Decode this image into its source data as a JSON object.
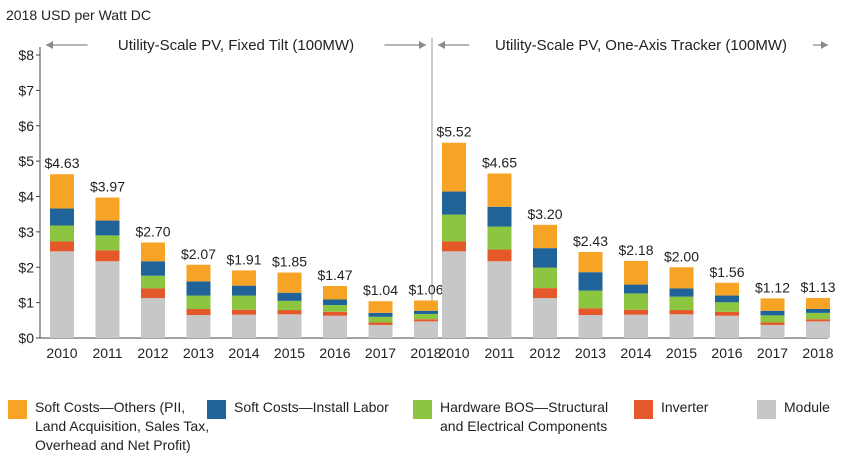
{
  "chart_data": {
    "type": "bar",
    "stacked": true,
    "ylabel": "2018 USD per Watt DC",
    "ylim": [
      0,
      8
    ],
    "yticks": [
      "$0",
      "$1",
      "$2",
      "$3",
      "$4",
      "$5",
      "$6",
      "$7",
      "$8"
    ],
    "grid": false,
    "legend_position": "bottom",
    "segment_order": [
      "Module",
      "Inverter",
      "Hardware BOS—Structural and Electrical Components",
      "Soft Costs—Install Labor",
      "Soft Costs—Others (PII, Land Acquisition, Sales Tax, Overhead and Net Profit)"
    ],
    "colors": {
      "Module": "#c7c7c7",
      "Inverter": "#e5582a",
      "Hardware BOS—Structural and Electrical Components": "#8cc540",
      "Soft Costs—Install Labor": "#1f6399",
      "Soft Costs—Others (PII, Land Acquisition, Sales Tax, Overhead and Net Profit)": "#f7a326"
    },
    "legend": [
      {
        "lines": [
          "Soft Costs—Others (PII,",
          "Land Acquisition, Sales Tax,",
          "Overhead and Net Profit)"
        ],
        "color": "#f7a326"
      },
      {
        "lines": [
          "Soft Costs—Install Labor"
        ],
        "color": "#1f6399"
      },
      {
        "lines": [
          "Hardware BOS—Structural",
          "and Electrical Components"
        ],
        "color": "#8cc540"
      },
      {
        "lines": [
          "Inverter"
        ],
        "color": "#e5582a"
      },
      {
        "lines": [
          "Module"
        ],
        "color": "#c7c7c7"
      }
    ],
    "panels": [
      {
        "title": "Utility-Scale PV, Fixed Tilt (100MW)",
        "categories": [
          "2010",
          "2011",
          "2012",
          "2013",
          "2014",
          "2015",
          "2016",
          "2017",
          "2018"
        ],
        "totals": [
          "$4.63",
          "$3.97",
          "$2.70",
          "$2.07",
          "$1.91",
          "$1.85",
          "$1.47",
          "$1.04",
          "$1.06"
        ],
        "series": [
          {
            "name": "Module",
            "values": [
              2.45,
              2.17,
              1.13,
              0.65,
              0.66,
              0.67,
              0.63,
              0.37,
              0.47
            ]
          },
          {
            "name": "Inverter",
            "values": [
              0.28,
              0.31,
              0.27,
              0.17,
              0.14,
              0.12,
              0.11,
              0.07,
              0.06
            ]
          },
          {
            "name": "Hardware BOS—Structural and Electrical Components",
            "values": [
              0.45,
              0.42,
              0.36,
              0.38,
              0.4,
              0.26,
              0.19,
              0.16,
              0.15
            ]
          },
          {
            "name": "Soft Costs—Install Labor",
            "values": [
              0.48,
              0.42,
              0.41,
              0.4,
              0.28,
              0.23,
              0.16,
              0.11,
              0.09
            ]
          },
          {
            "name": "Soft Costs—Others (PII, Land Acquisition, Sales Tax, Overhead and Net Profit)",
            "values": [
              0.97,
              0.65,
              0.53,
              0.47,
              0.43,
              0.57,
              0.38,
              0.33,
              0.29
            ]
          }
        ]
      },
      {
        "title": "Utility-Scale PV, One-Axis Tracker (100MW)",
        "categories": [
          "2010",
          "2011",
          "2012",
          "2013",
          "2014",
          "2015",
          "2016",
          "2017",
          "2018"
        ],
        "totals": [
          "$5.52",
          "$4.65",
          "$3.20",
          "$2.43",
          "$2.18",
          "$2.00",
          "$1.56",
          "$1.12",
          "$1.13"
        ],
        "series": [
          {
            "name": "Module",
            "values": [
              2.45,
              2.17,
              1.13,
              0.65,
              0.66,
              0.67,
              0.63,
              0.37,
              0.47
            ]
          },
          {
            "name": "Inverter",
            "values": [
              0.28,
              0.33,
              0.28,
              0.19,
              0.14,
              0.12,
              0.11,
              0.07,
              0.06
            ]
          },
          {
            "name": "Hardware BOS—Structural and Electrical Components",
            "values": [
              0.76,
              0.65,
              0.58,
              0.5,
              0.46,
              0.38,
              0.27,
              0.2,
              0.18
            ]
          },
          {
            "name": "Soft Costs—Install Labor",
            "values": [
              0.65,
              0.56,
              0.55,
              0.52,
              0.25,
              0.23,
              0.19,
              0.13,
              0.11
            ]
          },
          {
            "name": "Soft Costs—Others (PII, Land Acquisition, Sales Tax, Overhead and Net Profit)",
            "values": [
              1.38,
              0.94,
              0.66,
              0.57,
              0.67,
              0.6,
              0.36,
              0.35,
              0.31
            ]
          }
        ]
      }
    ]
  }
}
